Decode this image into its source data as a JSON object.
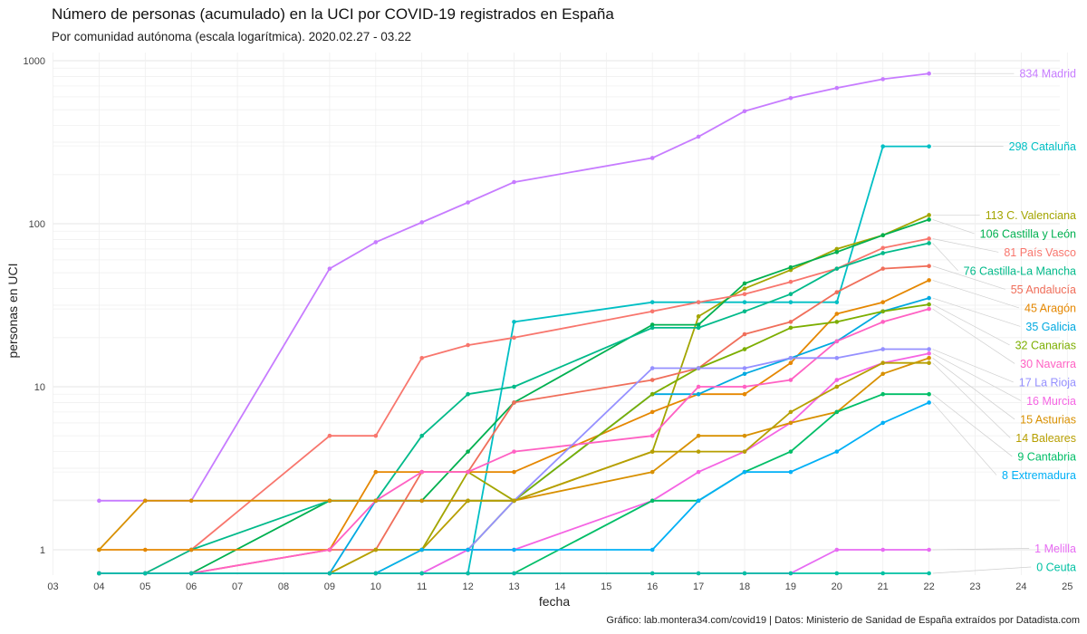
{
  "title": "Número de personas (acumulado) en la UCI por COVID-19 registrados en España",
  "subtitle": "Por comunidad autónoma (escala logarítmica). 2020.02.27 - 03.22",
  "caption": "Gráfico: lab.montera34.com/covid19 | Datos: Ministerio de Sanidad de España extraídos por Datadista.com",
  "chart_data": {
    "type": "line",
    "xlabel": "fecha",
    "ylabel": "personas en UCI",
    "y_scale": "log",
    "x_ticks": [
      "03",
      "04",
      "05",
      "06",
      "07",
      "08",
      "09",
      "10",
      "11",
      "12",
      "13",
      "14",
      "15",
      "16",
      "17",
      "18",
      "19",
      "20",
      "21",
      "22",
      "23",
      "24",
      "25"
    ],
    "y_ticks": [
      1,
      10,
      100,
      1000
    ],
    "x": [
      4,
      5,
      6,
      9,
      10,
      11,
      12,
      13,
      16,
      17,
      18,
      19,
      20,
      21,
      22
    ],
    "grid": true,
    "legend": "direct labels at right end of lines",
    "series": [
      {
        "name": "Madrid",
        "end_label": "834 Madrid",
        "color": "#C77CFF",
        "values": [
          2,
          2,
          2,
          53,
          77,
          102,
          135,
          180,
          253,
          342,
          490,
          590,
          680,
          770,
          834
        ]
      },
      {
        "name": "Cataluña",
        "end_label": "298 Cataluña",
        "color": "#00BFC4",
        "values": [
          0,
          0,
          0,
          0,
          0,
          0,
          0,
          25,
          33,
          33,
          33,
          33,
          33,
          298,
          298
        ]
      },
      {
        "name": "C. Valenciana",
        "end_label": "113 C. Valenciana",
        "color": "#A3A500",
        "values": [
          0,
          0,
          0,
          0,
          1,
          1,
          3,
          2,
          4,
          27,
          40,
          52,
          70,
          85,
          113
        ]
      },
      {
        "name": "Castilla y León",
        "end_label": "106 Castilla y León",
        "color": "#00B050",
        "values": [
          0,
          0,
          0,
          2,
          2,
          2,
          4,
          8,
          24,
          24,
          43,
          54,
          67,
          85,
          106
        ]
      },
      {
        "name": "País Vasco",
        "end_label": "81 País Vasco",
        "color": "#F8766D",
        "values": [
          0,
          0,
          1,
          5,
          5,
          15,
          18,
          20,
          29,
          33,
          37,
          44,
          53,
          71,
          81
        ]
      },
      {
        "name": "Castilla-La Mancha",
        "end_label": "76 Castilla-La Mancha",
        "color": "#00BA8A",
        "values": [
          0,
          0,
          1,
          2,
          2,
          5,
          9,
          10,
          23,
          23,
          29,
          37,
          53,
          66,
          76
        ]
      },
      {
        "name": "Andalucía",
        "end_label": "55 Andalucía",
        "color": "#F06E5A",
        "values": [
          0,
          0,
          0,
          1,
          1,
          3,
          3,
          8,
          11,
          13,
          21,
          25,
          38,
          53,
          55
        ]
      },
      {
        "name": "Aragón",
        "end_label": "45 Aragón",
        "color": "#E58700",
        "values": [
          1,
          1,
          1,
          1,
          3,
          3,
          3,
          3,
          7,
          9,
          9,
          14,
          28,
          33,
          45
        ]
      },
      {
        "name": "Galicia",
        "end_label": "35 Galicia",
        "color": "#00A9E0",
        "values": [
          0,
          0,
          0,
          0,
          2,
          2,
          2,
          2,
          9,
          9,
          12,
          15,
          19,
          29,
          35
        ]
      },
      {
        "name": "Canarias",
        "end_label": "32 Canarias",
        "color": "#7CAE00",
        "values": [
          0,
          0,
          0,
          0,
          0,
          1,
          1,
          2,
          9,
          13,
          17,
          23,
          25,
          29,
          32
        ]
      },
      {
        "name": "Navarra",
        "end_label": "30 Navarra",
        "color": "#FF61C3",
        "values": [
          0,
          0,
          0,
          1,
          2,
          3,
          3,
          4,
          5,
          10,
          10,
          11,
          19,
          25,
          30
        ]
      },
      {
        "name": "La Rioja",
        "end_label": "17 La Rioja",
        "color": "#9590FF",
        "values": [
          0,
          0,
          0,
          0,
          0,
          0,
          1,
          2,
          13,
          13,
          13,
          15,
          15,
          17,
          17
        ]
      },
      {
        "name": "Murcia",
        "end_label": "16 Murcia",
        "color": "#F564E3",
        "values": [
          0,
          0,
          0,
          0,
          0,
          0,
          1,
          1,
          2,
          3,
          4,
          6,
          11,
          14,
          16
        ]
      },
      {
        "name": "Asturias",
        "end_label": "15 Asturias",
        "color": "#D89000",
        "values": [
          1,
          2,
          2,
          2,
          2,
          2,
          2,
          2,
          3,
          5,
          5,
          6,
          7,
          12,
          15
        ]
      },
      {
        "name": "Baleares",
        "end_label": "14 Baleares",
        "color": "#B79F00",
        "values": [
          0,
          0,
          0,
          0,
          1,
          1,
          2,
          2,
          4,
          4,
          4,
          7,
          10,
          14,
          14
        ]
      },
      {
        "name": "Cantabria",
        "end_label": "9 Cantabria",
        "color": "#00BE67",
        "values": [
          0,
          0,
          0,
          0,
          0,
          0,
          0,
          0,
          2,
          2,
          3,
          4,
          7,
          9,
          9
        ]
      },
      {
        "name": "Extremadura",
        "end_label": "8 Extremadura",
        "color": "#00B0F6",
        "values": [
          0,
          0,
          0,
          0,
          0,
          1,
          1,
          1,
          1,
          2,
          3,
          3,
          4,
          6,
          8
        ]
      },
      {
        "name": "Melilla",
        "end_label": "1 Melilla",
        "color": "#E76BF3",
        "values": [
          0,
          0,
          0,
          0,
          0,
          0,
          0,
          0,
          0,
          0,
          0,
          0,
          1,
          1,
          1
        ]
      },
      {
        "name": "Ceuta",
        "end_label": "0 Ceuta",
        "color": "#00C1A3",
        "values": [
          0,
          0,
          0,
          0,
          0,
          0,
          0,
          0,
          0,
          0,
          0,
          0,
          0,
          0,
          0
        ]
      }
    ]
  }
}
